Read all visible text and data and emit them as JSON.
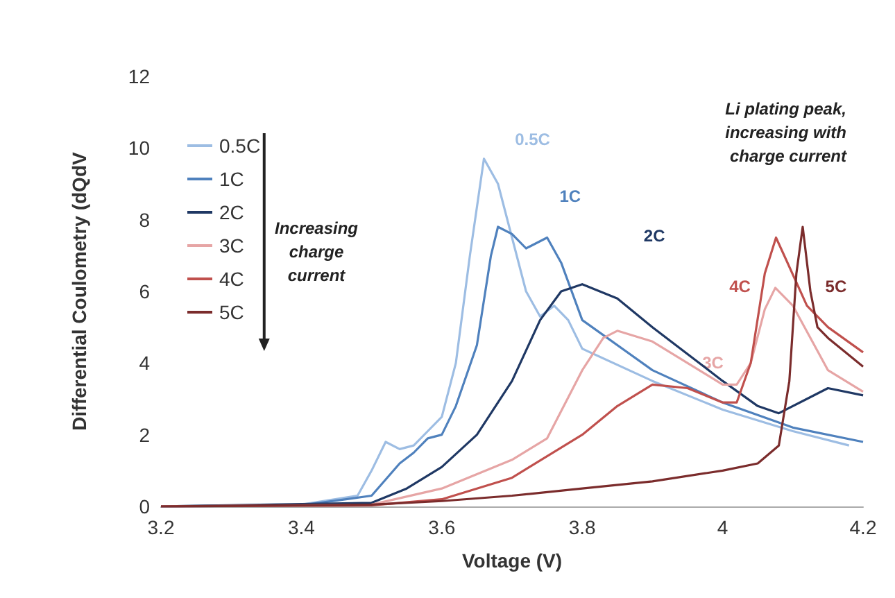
{
  "chart_data": {
    "type": "line",
    "xlabel": "Voltage (V)",
    "ylabel": "Differential Coulometry (dQdV",
    "xlim": [
      3.2,
      4.2
    ],
    "xticks": [
      3.2,
      3.4,
      3.6,
      3.8,
      4,
      4.2
    ],
    "ylim": [
      0,
      12
    ],
    "yticks": [
      0,
      2,
      4,
      6,
      8,
      10,
      12
    ],
    "grid": false,
    "legend": "top left",
    "marker": "none",
    "line_style": "solid",
    "series": [
      {
        "name": "0.5C",
        "color": "#9dbde3",
        "x": [
          3.2,
          3.4,
          3.48,
          3.5,
          3.52,
          3.54,
          3.56,
          3.58,
          3.6,
          3.62,
          3.64,
          3.66,
          3.68,
          3.7,
          3.72,
          3.74,
          3.76,
          3.78,
          3.8,
          3.9,
          4.0,
          4.1,
          4.18
        ],
        "values": [
          0,
          0.05,
          0.3,
          1.0,
          1.8,
          1.6,
          1.7,
          2.1,
          2.5,
          4,
          7,
          9.7,
          9,
          7.5,
          6,
          5.3,
          5.6,
          5.2,
          4.4,
          3.5,
          2.7,
          2.1,
          1.7
        ]
      },
      {
        "name": "1C",
        "color": "#4f81bd",
        "x": [
          3.2,
          3.4,
          3.5,
          3.54,
          3.56,
          3.58,
          3.6,
          3.62,
          3.65,
          3.67,
          3.68,
          3.7,
          3.72,
          3.75,
          3.77,
          3.8,
          3.9,
          4.0,
          4.1,
          4.2
        ],
        "values": [
          0,
          0.03,
          0.3,
          1.2,
          1.5,
          1.9,
          2.0,
          2.8,
          4.5,
          7,
          7.8,
          7.6,
          7.2,
          7.5,
          6.8,
          5.2,
          3.8,
          2.9,
          2.2,
          1.8
        ]
      },
      {
        "name": "2C",
        "color": "#1f3864",
        "x": [
          3.2,
          3.5,
          3.55,
          3.6,
          3.65,
          3.7,
          3.74,
          3.77,
          3.8,
          3.85,
          3.9,
          4.0,
          4.05,
          4.08,
          4.12,
          4.15,
          4.2
        ],
        "values": [
          0,
          0.1,
          0.5,
          1.1,
          2.0,
          3.5,
          5.2,
          6.0,
          6.2,
          5.8,
          5.0,
          3.5,
          2.8,
          2.6,
          3.0,
          3.3,
          3.1
        ]
      },
      {
        "name": "3C",
        "color": "#e6a5a5",
        "x": [
          3.2,
          3.5,
          3.6,
          3.7,
          3.75,
          3.8,
          3.83,
          3.85,
          3.9,
          4.0,
          4.02,
          4.04,
          4.06,
          4.075,
          4.1,
          4.15,
          4.2
        ],
        "values": [
          0,
          0.05,
          0.5,
          1.3,
          1.9,
          3.8,
          4.7,
          4.9,
          4.6,
          3.4,
          3.4,
          4.0,
          5.5,
          6.1,
          5.6,
          3.8,
          3.2
        ]
      },
      {
        "name": "4C",
        "color": "#c0504d",
        "x": [
          3.2,
          3.5,
          3.6,
          3.7,
          3.8,
          3.85,
          3.9,
          3.95,
          4.0,
          4.02,
          4.04,
          4.06,
          4.076,
          4.09,
          4.12,
          4.15,
          4.2
        ],
        "values": [
          0,
          0.03,
          0.2,
          0.8,
          2.0,
          2.8,
          3.4,
          3.3,
          2.9,
          2.9,
          4.0,
          6.5,
          7.5,
          6.9,
          5.6,
          5.0,
          4.3
        ]
      },
      {
        "name": "5C",
        "color": "#7b2c2c",
        "x": [
          3.2,
          3.5,
          3.6,
          3.7,
          3.8,
          3.9,
          4.0,
          4.05,
          4.08,
          4.095,
          4.105,
          4.114,
          4.125,
          4.135,
          4.15,
          4.2
        ],
        "values": [
          0,
          0.05,
          0.15,
          0.3,
          0.5,
          0.7,
          1.0,
          1.2,
          1.7,
          3.5,
          6.5,
          7.8,
          6.0,
          5.0,
          4.7,
          3.9
        ]
      }
    ],
    "annotations": [
      "Increasing\ncharge\ncurrent",
      "Li plating peak,\nincreasing with\ncharge current"
    ]
  }
}
